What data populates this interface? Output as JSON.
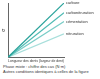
{
  "chart_data": {
    "type": "line",
    "y_label": "σ",
    "x_label": "Longueur des dents (largeur de dent)",
    "annotations": [
      "Phase mixte : chiffre des cas (N·m)",
      "Autres conditions identiques à celles de la figure"
    ],
    "x": [
      0,
      10
    ],
    "xlim": [
      0,
      10
    ],
    "ylim": [
      0,
      10
    ],
    "grid": false,
    "tick_labels": false,
    "series": [
      {
        "name": "carbure",
        "color": "#2aa39b",
        "values": [
          0,
          10
        ]
      },
      {
        "name": "carbonitruration",
        "color": "#4dbab3",
        "values": [
          0,
          8.2
        ]
      },
      {
        "name": "cémentation",
        "color": "#79cdc7",
        "values": [
          0,
          6.6
        ]
      },
      {
        "name": "nitruration",
        "color": "#a8dfdb",
        "values": [
          0,
          4.3
        ]
      }
    ]
  }
}
